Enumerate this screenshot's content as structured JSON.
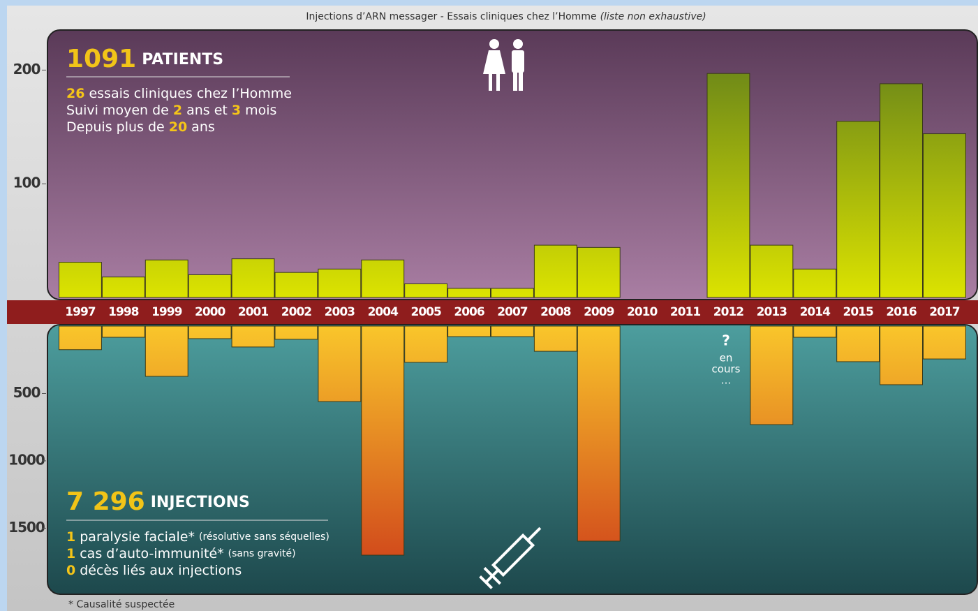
{
  "title": {
    "text": "Injections d’ARN messager - Essais cliniques chez l’Homme",
    "note": "(liste non exhaustive)"
  },
  "footnote": "* Causalité suspectée",
  "chart_data": [
    {
      "type": "bar",
      "categories": [
        "1997",
        "1998",
        "1999",
        "2000",
        "2001",
        "2002",
        "2003",
        "2004",
        "2005",
        "2006",
        "2007",
        "2008",
        "2009",
        "2010",
        "2011",
        "2012",
        "2013",
        "2014",
        "2015",
        "2016",
        "2017"
      ],
      "values": [
        31,
        18,
        33,
        20,
        34,
        22,
        25,
        33,
        12,
        8,
        8,
        46,
        44,
        null,
        null,
        197,
        46,
        25,
        155,
        188,
        144
      ],
      "ylim": [
        0,
        234
      ],
      "yticks": [
        100,
        200
      ],
      "colors": [
        "#5c7a1c",
        "#dce300"
      ],
      "headline": {
        "number": "1091",
        "label": "PATIENTS"
      },
      "lines": [
        [
          {
            "text": "26",
            "bold": true
          },
          {
            "text": "essais cliniques chez l’Homme"
          }
        ],
        [
          {
            "text": "Suivi moyen de"
          },
          {
            "text": "2",
            "bold": true
          },
          {
            "text": "ans et"
          },
          {
            "text": "3",
            "bold": true
          },
          {
            "text": "mois"
          }
        ],
        [
          {
            "text": "Depuis plus de"
          },
          {
            "text": "20",
            "bold": true
          },
          {
            "text": "ans"
          }
        ]
      ]
    },
    {
      "type": "bar",
      "inverted": true,
      "values": [
        175,
        83,
        373,
        93,
        155,
        98,
        560,
        1700,
        269,
        78,
        78,
        187,
        1596,
        null,
        null,
        null,
        731,
        83,
        264,
        435,
        244
      ],
      "ylim": [
        0,
        1985
      ],
      "yticks": [
        500,
        1000,
        1500
      ],
      "colors": [
        "#f9c62b",
        "#d0461b"
      ],
      "pending_note": [
        "?",
        "en",
        "cours",
        "..."
      ],
      "headline": {
        "number": "7 296",
        "label": "INJECTIONS"
      },
      "lines": [
        [
          {
            "text": "1",
            "bold": true
          },
          {
            "text": "paralysie faciale*"
          },
          {
            "text": "(résolutive sans séquelles)",
            "small": true
          }
        ],
        [
          {
            "text": "1",
            "bold": true
          },
          {
            "text": "cas d’auto-immunité*"
          },
          {
            "text": "(sans gravité)",
            "small": true
          }
        ],
        [
          {
            "text": "0",
            "bold": true
          },
          {
            "text": "décès liés aux injections"
          }
        ]
      ]
    }
  ]
}
